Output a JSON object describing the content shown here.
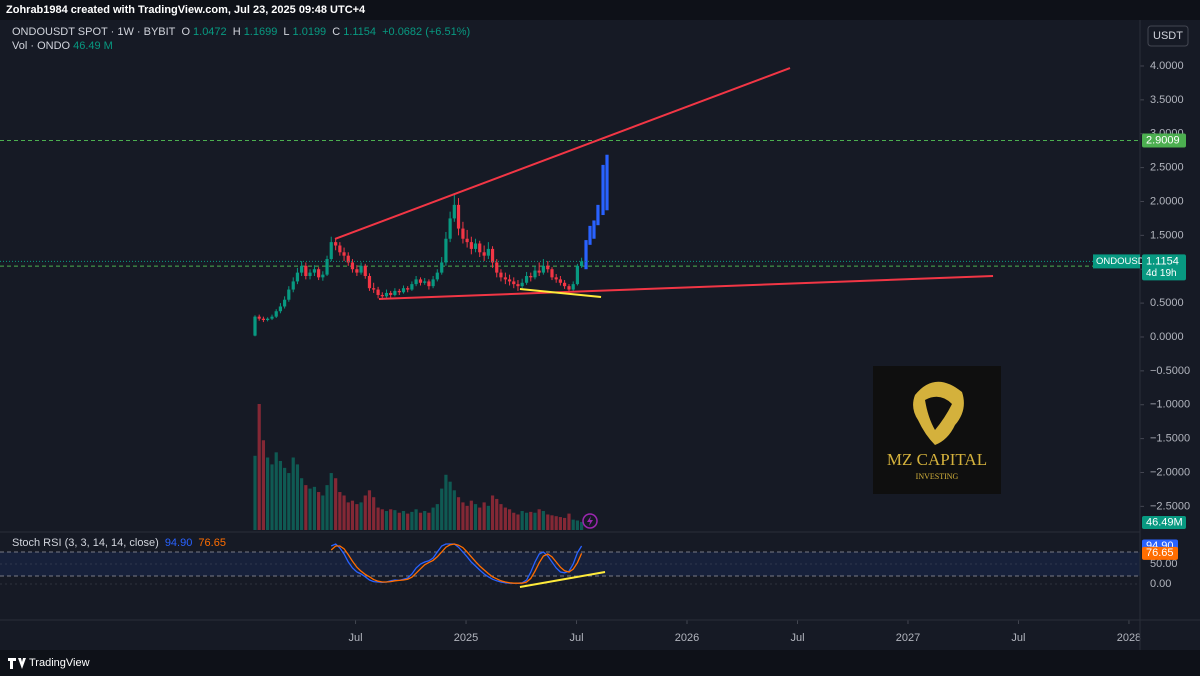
{
  "top_bar": {
    "credit": "Zohrab1984 created with TradingView.com, Jul 23, 2025 09:48 UTC+4"
  },
  "header": {
    "symbol": "ONDOUSDT SPOT · 1W · BYBIT",
    "o": "O",
    "h": "H",
    "l": "L",
    "c": "C",
    "change": "+0.0682 (+6.51%)",
    "vol_title": "Vol · ONDO",
    "vol_value": "46.49 M"
  },
  "currency_button": "USDT",
  "logo": {
    "name": "MZ CAPITAL",
    "tagline": "INVESTING"
  },
  "footer": {
    "brand": "TradingView"
  },
  "chart_data": {
    "type": "candlestick",
    "xlim": [
      2022.891,
      2028.05
    ],
    "xticks": [
      {
        "value": 2024.5,
        "label": "Jul"
      },
      2025,
      {
        "value": 2025.5,
        "label": "Jul"
      },
      2026,
      {
        "value": 2026.5,
        "label": "Jul"
      },
      2027,
      {
        "value": 2027.5,
        "label": "Jul"
      },
      2028
    ],
    "ylim": [
      -2.849,
      4.59
    ],
    "yticks": [
      {
        "value": 4,
        "label": "4.0000"
      },
      {
        "value": 3.5,
        "label": "3.5000"
      },
      {
        "value": 3,
        "label": "3.0000"
      },
      {
        "value": 2.5,
        "label": "2.5000"
      },
      {
        "value": 2,
        "label": "2.0000"
      },
      {
        "value": 1.5,
        "label": "1.5000"
      },
      {
        "value": 1,
        "label": "1.0000"
      },
      {
        "value": 0.5,
        "label": "0.5000"
      },
      {
        "value": 0,
        "label": "0.0000"
      },
      {
        "value": -0.5,
        "label": "−0.5000"
      },
      {
        "value": -1,
        "label": "−1.0000"
      },
      {
        "value": -1.5,
        "label": "−1.5000"
      },
      {
        "value": -2,
        "label": "−2.0000"
      },
      {
        "value": -2.5,
        "label": "−2.5000"
      }
    ],
    "grid": false,
    "up_color": "#089981",
    "down_color": "#f23645",
    "x": [
      2024.045,
      2024.064,
      2024.083,
      2024.102,
      2024.122,
      2024.141,
      2024.16,
      2024.179,
      2024.198,
      2024.218,
      2024.237,
      2024.256,
      2024.275,
      2024.294,
      2024.314,
      2024.333,
      2024.352,
      2024.371,
      2024.39,
      2024.41,
      2024.429,
      2024.448,
      2024.467,
      2024.486,
      2024.506,
      2024.525,
      2024.544,
      2024.563,
      2024.582,
      2024.602,
      2024.621,
      2024.64,
      2024.659,
      2024.678,
      2024.698,
      2024.717,
      2024.736,
      2024.755,
      2024.774,
      2024.794,
      2024.813,
      2024.832,
      2024.851,
      2024.87,
      2024.89,
      2024.909,
      2024.928,
      2024.947,
      2024.966,
      2024.986,
      2025.005,
      2025.024,
      2025.043,
      2025.062,
      2025.082,
      2025.101,
      2025.12,
      2025.139,
      2025.158,
      2025.178,
      2025.197,
      2025.216,
      2025.235,
      2025.254,
      2025.274,
      2025.293,
      2025.312,
      2025.331,
      2025.35,
      2025.37,
      2025.389,
      2025.408,
      2025.427,
      2025.446,
      2025.466,
      2025.485,
      2025.504,
      2025.523
    ],
    "series": [
      {
        "ohlc": [
          [
            0.02,
            0.32,
            0.01,
            0.3
          ],
          [
            0.3,
            0.33,
            0.24,
            0.27
          ],
          [
            0.27,
            0.3,
            0.22,
            0.25
          ],
          [
            0.25,
            0.29,
            0.23,
            0.27
          ],
          [
            0.27,
            0.33,
            0.25,
            0.3
          ],
          [
            0.3,
            0.41,
            0.28,
            0.38
          ],
          [
            0.38,
            0.5,
            0.35,
            0.45
          ],
          [
            0.45,
            0.6,
            0.42,
            0.55
          ],
          [
            0.55,
            0.75,
            0.52,
            0.7
          ],
          [
            0.7,
            0.88,
            0.66,
            0.82
          ],
          [
            0.82,
            1.02,
            0.78,
            0.95
          ],
          [
            0.95,
            1.12,
            0.9,
            1.05
          ],
          [
            1.05,
            1.1,
            0.85,
            0.9
          ],
          [
            0.9,
            1.0,
            0.85,
            0.95
          ],
          [
            0.95,
            1.06,
            0.9,
            1.0
          ],
          [
            1.0,
            1.03,
            0.84,
            0.88
          ],
          [
            0.88,
            0.97,
            0.83,
            0.92
          ],
          [
            0.92,
            1.2,
            0.9,
            1.15
          ],
          [
            1.15,
            1.48,
            1.12,
            1.4
          ],
          [
            1.4,
            1.45,
            1.28,
            1.35
          ],
          [
            1.35,
            1.4,
            1.2,
            1.25
          ],
          [
            1.25,
            1.32,
            1.12,
            1.2
          ],
          [
            1.2,
            1.25,
            1.05,
            1.1
          ],
          [
            1.1,
            1.15,
            0.95,
            1.0
          ],
          [
            1.0,
            1.06,
            0.9,
            0.95
          ],
          [
            0.95,
            1.1,
            0.92,
            1.05
          ],
          [
            1.05,
            1.08,
            0.86,
            0.9
          ],
          [
            0.9,
            0.94,
            0.68,
            0.72
          ],
          [
            0.72,
            0.8,
            0.65,
            0.7
          ],
          [
            0.7,
            0.74,
            0.57,
            0.62
          ],
          [
            0.62,
            0.66,
            0.55,
            0.6
          ],
          [
            0.6,
            0.7,
            0.57,
            0.65
          ],
          [
            0.65,
            0.68,
            0.58,
            0.62
          ],
          [
            0.62,
            0.72,
            0.6,
            0.68
          ],
          [
            0.68,
            0.71,
            0.62,
            0.66
          ],
          [
            0.66,
            0.76,
            0.64,
            0.72
          ],
          [
            0.72,
            0.75,
            0.66,
            0.7
          ],
          [
            0.7,
            0.82,
            0.68,
            0.78
          ],
          [
            0.78,
            0.9,
            0.75,
            0.85
          ],
          [
            0.85,
            0.88,
            0.76,
            0.8
          ],
          [
            0.8,
            0.87,
            0.77,
            0.82
          ],
          [
            0.82,
            0.85,
            0.7,
            0.75
          ],
          [
            0.75,
            0.9,
            0.72,
            0.85
          ],
          [
            0.85,
            1.0,
            0.82,
            0.95
          ],
          [
            0.95,
            1.18,
            0.92,
            1.1
          ],
          [
            1.1,
            1.55,
            1.05,
            1.45
          ],
          [
            1.45,
            1.85,
            1.4,
            1.75
          ],
          [
            1.75,
            2.12,
            1.7,
            1.95
          ],
          [
            1.95,
            2.05,
            1.5,
            1.6
          ],
          [
            1.6,
            1.7,
            1.38,
            1.45
          ],
          [
            1.45,
            1.58,
            1.32,
            1.4
          ],
          [
            1.4,
            1.48,
            1.22,
            1.3
          ],
          [
            1.3,
            1.45,
            1.25,
            1.38
          ],
          [
            1.38,
            1.42,
            1.18,
            1.25
          ],
          [
            1.25,
            1.35,
            1.12,
            1.2
          ],
          [
            1.2,
            1.4,
            1.15,
            1.3
          ],
          [
            1.3,
            1.34,
            1.02,
            1.1
          ],
          [
            1.1,
            1.15,
            0.88,
            0.95
          ],
          [
            0.95,
            1.0,
            0.82,
            0.88
          ],
          [
            0.88,
            0.95,
            0.78,
            0.85
          ],
          [
            0.85,
            0.92,
            0.76,
            0.82
          ],
          [
            0.82,
            0.88,
            0.72,
            0.78
          ],
          [
            0.78,
            0.84,
            0.68,
            0.75
          ],
          [
            0.75,
            0.86,
            0.72,
            0.8
          ],
          [
            0.8,
            0.96,
            0.77,
            0.9
          ],
          [
            0.9,
            0.95,
            0.82,
            0.88
          ],
          [
            0.88,
            1.05,
            0.85,
            0.98
          ],
          [
            0.98,
            1.1,
            0.9,
            0.95
          ],
          [
            0.95,
            1.15,
            0.92,
            1.05
          ],
          [
            1.05,
            1.12,
            0.95,
            1.0
          ],
          [
            1.0,
            1.03,
            0.84,
            0.88
          ],
          [
            0.88,
            0.93,
            0.8,
            0.85
          ],
          [
            0.85,
            0.9,
            0.76,
            0.8
          ],
          [
            0.8,
            0.84,
            0.71,
            0.75
          ],
          [
            0.75,
            0.78,
            0.64,
            0.7
          ],
          [
            0.7,
            0.82,
            0.68,
            0.78
          ],
          [
            0.78,
            1.08,
            0.76,
            1.05
          ],
          [
            1.0472,
            1.1699,
            1.0199,
            1.1154
          ]
        ]
      }
    ],
    "price_label": {
      "name": "ONDOUSDT",
      "countdown": "4d 19h",
      "color": "#089981"
    },
    "hlines": [
      {
        "value": 2.9009,
        "color": "#4caf50"
      },
      {
        "value": 1.0459,
        "color": "#4caf50"
      }
    ],
    "volume": {
      "ylim": [
        0,
        2920
      ],
      "last_label": "46.49M",
      "values": [
        430,
        730,
        520,
        420,
        380,
        450,
        400,
        360,
        330,
        420,
        380,
        300,
        260,
        240,
        250,
        220,
        200,
        260,
        330,
        300,
        220,
        200,
        160,
        170,
        150,
        160,
        200,
        230,
        190,
        130,
        120,
        110,
        120,
        115,
        100,
        110,
        95,
        105,
        120,
        100,
        110,
        100,
        130,
        150,
        240,
        320,
        280,
        230,
        190,
        160,
        140,
        170,
        150,
        130,
        160,
        140,
        200,
        180,
        150,
        130,
        120,
        100,
        90,
        110,
        100,
        105,
        100,
        120,
        110,
        90,
        85,
        80,
        75,
        70,
        95,
        60,
        55,
        46.49
      ]
    },
    "projection": {
      "color": "#2962ff",
      "x": [
        2025.543,
        2025.561,
        2025.579,
        2025.597,
        2025.62,
        2025.638
      ],
      "low": [
        1.0,
        1.36,
        1.45,
        1.65,
        1.8,
        1.87
      ],
      "high": [
        1.43,
        1.64,
        1.72,
        1.95,
        2.54,
        2.69
      ]
    },
    "trendlines": [
      {
        "color": "#f23645",
        "x": [
          2024.407,
          2026.466
        ],
        "y": [
          1.447,
          3.97
        ]
      },
      {
        "color": "#f23645",
        "x": [
          2024.606,
          2027.385
        ],
        "y": [
          0.561,
          0.9
        ]
      },
      {
        "color": "#ffeb3b",
        "x": [
          2025.244,
          2025.611
        ],
        "y": [
          0.708,
          0.59
        ]
      }
    ],
    "stoch_rsi": {
      "title": "Stoch RSI (3, 3, 14, 14, close)",
      "ylim": [
        -90,
        127.5
      ],
      "yticks": [
        {
          "value": 50,
          "label": "50.00"
        },
        {
          "value": 0,
          "label": "0.00"
        }
      ],
      "bands": [
        80,
        20
      ],
      "trendline": {
        "color": "#ffeb3b",
        "x": [
          2025.244,
          2025.629
        ],
        "y": [
          -7.5,
          30
        ]
      },
      "series": [
        {
          "color": "#2962ff",
          "value_label": "94.90",
          "values": [
            null,
            null,
            null,
            null,
            null,
            null,
            null,
            null,
            null,
            null,
            null,
            null,
            null,
            null,
            null,
            null,
            null,
            null,
            95,
            100,
            90,
            75,
            55,
            40,
            30,
            25,
            18,
            10,
            6,
            5,
            4,
            5,
            8,
            10,
            9,
            12,
            15,
            25,
            40,
            50,
            55,
            58,
            65,
            80,
            95,
            100,
            100,
            100,
            92,
            80,
            68,
            55,
            45,
            35,
            25,
            18,
            12,
            8,
            5,
            3,
            2,
            2,
            2,
            3,
            10,
            30,
            55,
            75,
            80,
            70,
            55,
            40,
            30,
            28,
            32,
            50,
            78,
            94.9
          ]
        },
        {
          "color": "#ff6d00",
          "value_label": "76.65",
          "values": [
            null,
            null,
            null,
            null,
            null,
            null,
            null,
            null,
            null,
            null,
            null,
            null,
            null,
            null,
            null,
            null,
            null,
            null,
            85,
            95,
            95,
            88,
            73,
            57,
            42,
            32,
            24,
            18,
            11,
            7,
            5,
            5,
            6,
            8,
            9,
            10,
            12,
            17,
            27,
            38,
            48,
            54,
            59,
            68,
            80,
            92,
            98,
            100,
            97,
            91,
            80,
            68,
            56,
            45,
            35,
            26,
            18,
            13,
            8,
            5,
            3,
            2,
            2,
            2,
            5,
            14,
            32,
            53,
            70,
            75,
            68,
            55,
            42,
            33,
            30,
            37,
            53,
            76.65
          ]
        }
      ]
    }
  }
}
